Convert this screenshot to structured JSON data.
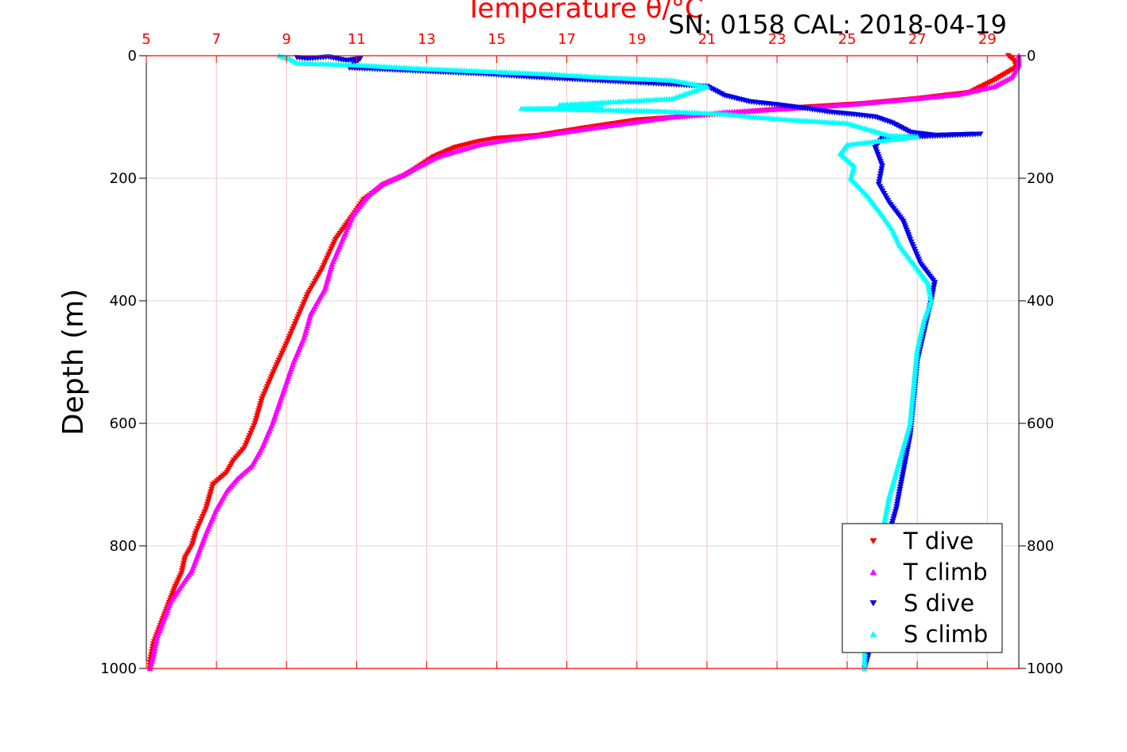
{
  "chart_data": {
    "type": "scatter",
    "title": "Temperature θ/°C",
    "subtitle": "SN: 0158  CAL: 2018-04-19",
    "ylabel": "Depth (m)",
    "xlim": [
      5,
      29.9
    ],
    "ylim": [
      1000,
      0
    ],
    "x_ticks": [
      5,
      7,
      9,
      11,
      13,
      15,
      17,
      19,
      21,
      23,
      25,
      27,
      29
    ],
    "y_ticks": [
      0,
      200,
      400,
      600,
      800,
      1000
    ],
    "grid": true,
    "legend_position": "bottom-right",
    "colors": {
      "temperature_axis": "#ff0000",
      "grid_x": "#f4c0c0",
      "grid_y": "#d9d9d9",
      "t_dive": "#ff0000",
      "t_climb": "#ff00ff",
      "s_dive": "#0000ee",
      "s_climb": "#00ffff"
    },
    "series": [
      {
        "name": "T dive",
        "marker": "triangle-down",
        "color": "#ff0000",
        "points": [
          [
            29.6,
            0
          ],
          [
            29.8,
            10
          ],
          [
            29.8,
            20
          ],
          [
            29.5,
            30
          ],
          [
            29.2,
            40
          ],
          [
            28.5,
            60
          ],
          [
            27.0,
            70
          ],
          [
            25.5,
            78
          ],
          [
            23.5,
            85
          ],
          [
            21.5,
            95
          ],
          [
            19.0,
            105
          ],
          [
            17.5,
            118
          ],
          [
            16.2,
            130
          ],
          [
            15.0,
            135
          ],
          [
            14.5,
            140
          ],
          [
            13.8,
            150
          ],
          [
            13.2,
            165
          ],
          [
            12.8,
            180
          ],
          [
            12.4,
            195
          ],
          [
            11.8,
            210
          ],
          [
            11.2,
            235
          ],
          [
            10.9,
            260
          ],
          [
            10.4,
            300
          ],
          [
            10.0,
            350
          ],
          [
            9.6,
            390
          ],
          [
            9.3,
            430
          ],
          [
            9.0,
            470
          ],
          [
            8.6,
            520
          ],
          [
            8.3,
            560
          ],
          [
            8.1,
            600
          ],
          [
            7.8,
            640
          ],
          [
            7.5,
            660
          ],
          [
            7.3,
            680
          ],
          [
            6.9,
            700
          ],
          [
            6.7,
            740
          ],
          [
            6.4,
            780
          ],
          [
            6.3,
            800
          ],
          [
            6.1,
            820
          ],
          [
            6.0,
            845
          ],
          [
            5.8,
            870
          ],
          [
            5.6,
            900
          ],
          [
            5.4,
            930
          ],
          [
            5.2,
            960
          ],
          [
            5.1,
            990
          ],
          [
            5.1,
            1000
          ]
        ]
      },
      {
        "name": "T climb",
        "marker": "triangle-up",
        "color": "#ff00ff",
        "points": [
          [
            29.9,
            0
          ],
          [
            29.9,
            15
          ],
          [
            29.7,
            35
          ],
          [
            29.2,
            50
          ],
          [
            28.2,
            63
          ],
          [
            27.0,
            70
          ],
          [
            26.0,
            75
          ],
          [
            25.0,
            80
          ],
          [
            24.0,
            84
          ],
          [
            22.8,
            88
          ],
          [
            21.5,
            92
          ],
          [
            20.0,
            100
          ],
          [
            18.5,
            112
          ],
          [
            17.5,
            120
          ],
          [
            16.3,
            130
          ],
          [
            15.2,
            138
          ],
          [
            14.5,
            145
          ],
          [
            13.9,
            155
          ],
          [
            13.3,
            165
          ],
          [
            12.8,
            180
          ],
          [
            12.3,
            195
          ],
          [
            11.7,
            210
          ],
          [
            11.3,
            230
          ],
          [
            10.9,
            260
          ],
          [
            10.6,
            300
          ],
          [
            10.3,
            340
          ],
          [
            10.1,
            380
          ],
          [
            9.7,
            420
          ],
          [
            9.5,
            460
          ],
          [
            9.2,
            500
          ],
          [
            8.9,
            550
          ],
          [
            8.6,
            600
          ],
          [
            8.3,
            640
          ],
          [
            8.0,
            670
          ],
          [
            7.6,
            690
          ],
          [
            7.3,
            710
          ],
          [
            7.0,
            740
          ],
          [
            6.7,
            780
          ],
          [
            6.5,
            810
          ],
          [
            6.3,
            840
          ],
          [
            6.0,
            865
          ],
          [
            5.7,
            890
          ],
          [
            5.5,
            920
          ],
          [
            5.3,
            950
          ],
          [
            5.2,
            980
          ],
          [
            5.1,
            1000
          ]
        ]
      },
      {
        "name": "S dive",
        "marker": "triangle-down",
        "color": "#0000ee",
        "points": [
          [
            9.3,
            3
          ],
          [
            9.6,
            5
          ],
          [
            10.2,
            2
          ],
          [
            10.7,
            8
          ],
          [
            11.1,
            5
          ],
          [
            10.8,
            20
          ],
          [
            14.7,
            30
          ],
          [
            16.0,
            35
          ],
          [
            21.0,
            50
          ],
          [
            21.5,
            65
          ],
          [
            22.2,
            75
          ],
          [
            23.0,
            80
          ],
          [
            23.8,
            86
          ],
          [
            24.5,
            92
          ],
          [
            25.2,
            96
          ],
          [
            25.8,
            100
          ],
          [
            26.3,
            110
          ],
          [
            26.8,
            125
          ],
          [
            27.5,
            130
          ],
          [
            28.8,
            128
          ],
          [
            26.0,
            135
          ],
          [
            25.8,
            150
          ],
          [
            26.0,
            180
          ],
          [
            25.9,
            210
          ],
          [
            26.2,
            240
          ],
          [
            26.6,
            270
          ],
          [
            26.8,
            300
          ],
          [
            27.1,
            340
          ],
          [
            27.5,
            370
          ],
          [
            27.4,
            400
          ],
          [
            27.2,
            450
          ],
          [
            27.0,
            500
          ],
          [
            26.9,
            560
          ],
          [
            26.8,
            620
          ],
          [
            26.6,
            680
          ],
          [
            26.4,
            740
          ],
          [
            26.1,
            800
          ],
          [
            25.9,
            860
          ],
          [
            25.7,
            920
          ],
          [
            25.6,
            980
          ],
          [
            25.5,
            1000
          ]
        ]
      },
      {
        "name": "S climb",
        "marker": "triangle-up",
        "color": "#00ffff",
        "points": [
          [
            8.8,
            0
          ],
          [
            9.1,
            5
          ],
          [
            9.3,
            12
          ],
          [
            11.0,
            15
          ],
          [
            12.5,
            20
          ],
          [
            14.5,
            25
          ],
          [
            16.5,
            30
          ],
          [
            18.0,
            35
          ],
          [
            20.0,
            40
          ],
          [
            21.0,
            50
          ],
          [
            20.5,
            60
          ],
          [
            20.0,
            70
          ],
          [
            16.8,
            80
          ],
          [
            18.0,
            85
          ],
          [
            15.7,
            86
          ],
          [
            19.5,
            90
          ],
          [
            21.5,
            95
          ],
          [
            22.4,
            100
          ],
          [
            23.5,
            105
          ],
          [
            25.0,
            110
          ],
          [
            26.2,
            130
          ],
          [
            27.0,
            132
          ],
          [
            25.0,
            145
          ],
          [
            24.8,
            160
          ],
          [
            25.2,
            180
          ],
          [
            25.1,
            200
          ],
          [
            25.6,
            230
          ],
          [
            26.0,
            260
          ],
          [
            26.3,
            285
          ],
          [
            26.5,
            310
          ],
          [
            26.9,
            340
          ],
          [
            27.3,
            370
          ],
          [
            27.4,
            400
          ],
          [
            27.2,
            430
          ],
          [
            27.0,
            480
          ],
          [
            26.9,
            540
          ],
          [
            26.8,
            600
          ],
          [
            26.5,
            660
          ],
          [
            26.2,
            720
          ],
          [
            26.0,
            780
          ],
          [
            25.8,
            840
          ],
          [
            25.6,
            900
          ],
          [
            25.5,
            950
          ],
          [
            25.5,
            1000
          ]
        ]
      }
    ]
  }
}
